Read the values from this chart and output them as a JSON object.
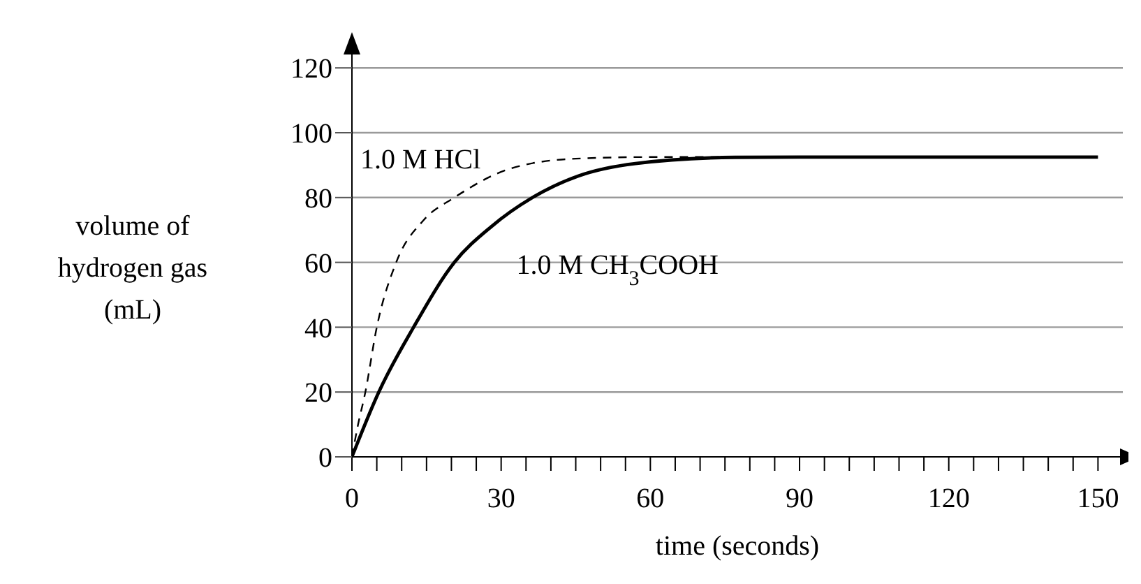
{
  "chart_data": {
    "type": "line",
    "xlabel": "time (seconds)",
    "ylabel": "volume of hydrogen gas (mL)",
    "xlim": [
      0,
      155
    ],
    "ylim": [
      0,
      125
    ],
    "xticks": [
      0,
      {
        "value": 5,
        "label": null
      },
      {
        "value": 10,
        "label": null
      },
      {
        "value": 15,
        "label": null
      },
      {
        "value": 20,
        "label": null
      },
      {
        "value": 25,
        "label": null
      },
      30,
      {
        "value": 35,
        "label": null
      },
      {
        "value": 40,
        "label": null
      },
      {
        "value": 45,
        "label": null
      },
      {
        "value": 50,
        "label": null
      },
      {
        "value": 55,
        "label": null
      },
      60,
      {
        "value": 65,
        "label": null
      },
      {
        "value": 70,
        "label": null
      },
      {
        "value": 75,
        "label": null
      },
      {
        "value": 80,
        "label": null
      },
      {
        "value": 85,
        "label": null
      },
      90,
      {
        "value": 95,
        "label": null
      },
      {
        "value": 100,
        "label": null
      },
      {
        "value": 105,
        "label": null
      },
      {
        "value": 110,
        "label": null
      },
      {
        "value": 115,
        "label": null
      },
      120,
      {
        "value": 125,
        "label": null
      },
      {
        "value": 130,
        "label": null
      },
      {
        "value": 135,
        "label": null
      },
      {
        "value": 140,
        "label": null
      },
      {
        "value": 145,
        "label": null
      },
      150
    ],
    "yticks": [
      0,
      20,
      40,
      60,
      80,
      100,
      120
    ],
    "grid": "y",
    "marker": "none",
    "series": [
      {
        "name": "1.0 M HCl",
        "color": "#000000",
        "line_style": "dashed",
        "x": [
          0,
          1.1,
          2.7,
          5,
          8.9,
          14.4,
          20.6,
          32,
          45,
          60,
          90
        ],
        "values": [
          0,
          9,
          20,
          40,
          60,
          73,
          80,
          89,
          92,
          92.5,
          92.5
        ]
      },
      {
        "name": "1.0 M CH$_{3}$COOH",
        "color": "#000000",
        "line_style": "solid",
        "x": [
          0,
          5.4,
          12.4,
          20.6,
          28,
          36.3,
          45.6,
          57,
          77,
          90,
          150
        ],
        "values": [
          0,
          20,
          40,
          60,
          71,
          80,
          86.7,
          90.5,
          92.4,
          92.5,
          92.5
        ]
      }
    ]
  }
}
